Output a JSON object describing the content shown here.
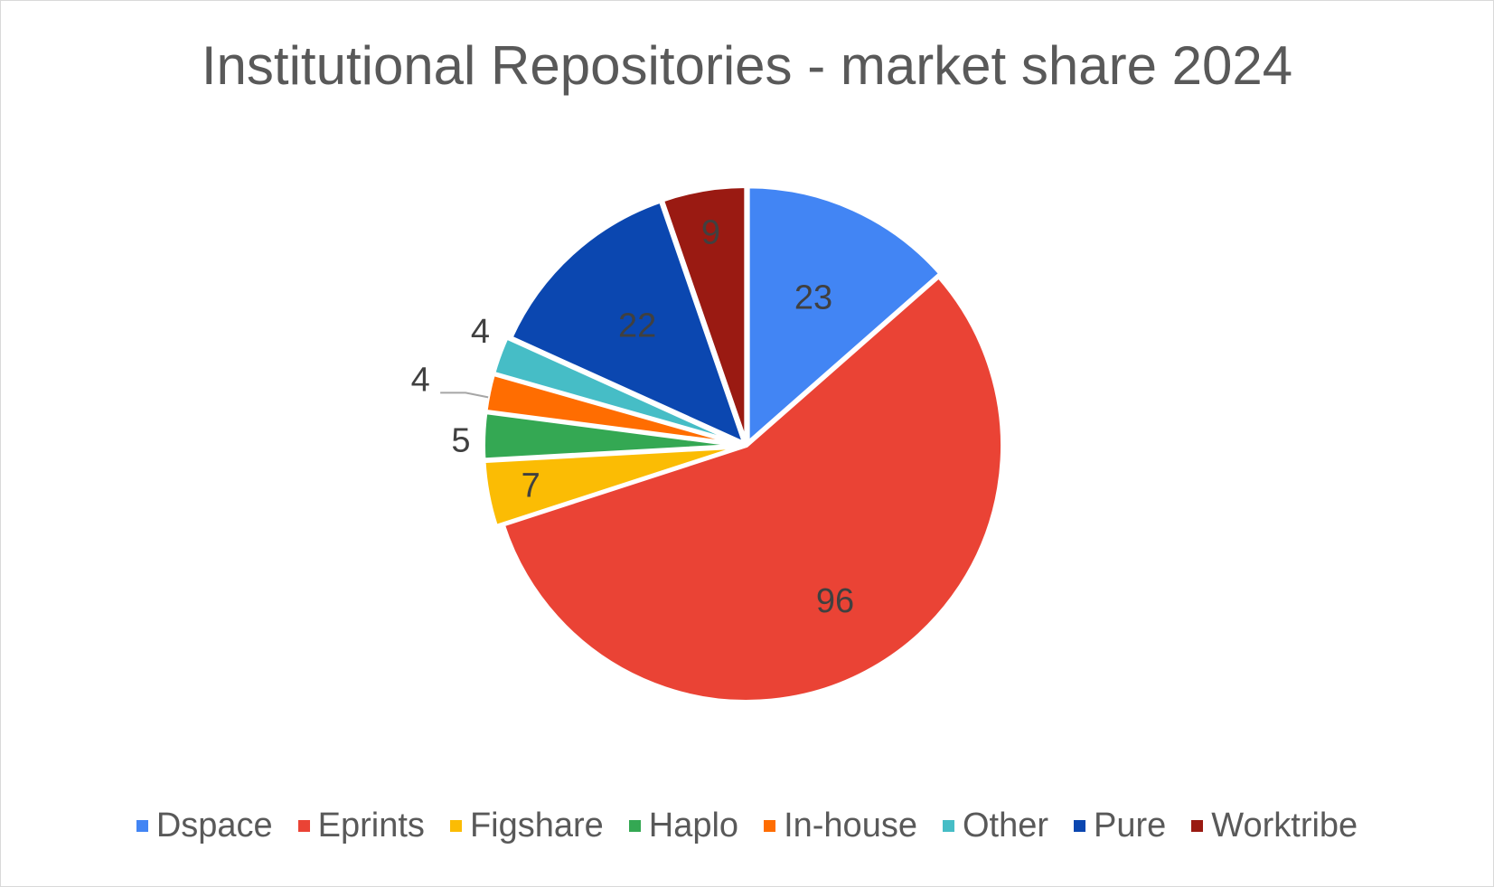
{
  "chart_data": {
    "type": "pie",
    "title": "Institutional Repositories - market share 2024",
    "legend_position": "bottom",
    "slices": [
      {
        "name": "Dspace",
        "value": 23,
        "color": "#4285F4",
        "label_color": "#404040"
      },
      {
        "name": "Eprints",
        "value": 96,
        "color": "#EA4335",
        "label_color": "#404040"
      },
      {
        "name": "Figshare",
        "value": 7,
        "color": "#FBBC04",
        "label_color": "#404040"
      },
      {
        "name": "Haplo",
        "value": 5,
        "color": "#34A853",
        "label_color": "#404040"
      },
      {
        "name": "In-house",
        "value": 4,
        "color": "#FF6D01",
        "label_color": "#404040"
      },
      {
        "name": "Other",
        "value": 4,
        "color": "#46BDC6",
        "label_color": "#404040"
      },
      {
        "name": "Pure",
        "value": 22,
        "color": "#0B47B0",
        "label_color": "#404040"
      },
      {
        "name": "Worktribe",
        "value": 9,
        "color": "#9A1A12",
        "label_color": "#404040"
      }
    ]
  }
}
